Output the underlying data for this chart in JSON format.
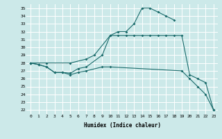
{
  "xlabel": "Humidex (Indice chaleur)",
  "xlim": [
    -0.5,
    23.5
  ],
  "ylim": [
    21.5,
    35.5
  ],
  "xticks": [
    0,
    1,
    2,
    3,
    4,
    5,
    6,
    7,
    8,
    9,
    10,
    11,
    12,
    13,
    14,
    15,
    16,
    17,
    18,
    19,
    20,
    21,
    22,
    23
  ],
  "yticks": [
    22,
    23,
    24,
    25,
    26,
    27,
    28,
    29,
    30,
    31,
    32,
    33,
    34,
    35
  ],
  "bg_color": "#cce9e9",
  "line_color": "#1a6b6b",
  "grid_color": "#ffffff",
  "line1_x": [
    0,
    2,
    5,
    7,
    8,
    10,
    11,
    12,
    13,
    14,
    15,
    16,
    17,
    18
  ],
  "line1_y": [
    28,
    28,
    28,
    28.5,
    29,
    31.5,
    32,
    32,
    33,
    35,
    35,
    34.5,
    34,
    33.5
  ],
  "line2_x": [
    0,
    1,
    2,
    3,
    4,
    5,
    6,
    7,
    9,
    10,
    11,
    12,
    13,
    14,
    15,
    16,
    17,
    18,
    19,
    20,
    21,
    22,
    23
  ],
  "line2_y": [
    28,
    27.8,
    27.5,
    26.8,
    26.8,
    26.7,
    27.3,
    27.5,
    29,
    31.5,
    31.5,
    31.5,
    31.5,
    31.5,
    31.5,
    31.5,
    31.5,
    31.5,
    31.5,
    26.5,
    26.0,
    25.5,
    22.0
  ],
  "line3_x": [
    0,
    1,
    2,
    3,
    4,
    5,
    6,
    7,
    9,
    10,
    19,
    20,
    21,
    22,
    23
  ],
  "line3_y": [
    28,
    27.8,
    27.5,
    26.8,
    26.8,
    26.5,
    26.8,
    27,
    27.5,
    27.5,
    27.0,
    26.0,
    25.0,
    24.0,
    22.0
  ]
}
